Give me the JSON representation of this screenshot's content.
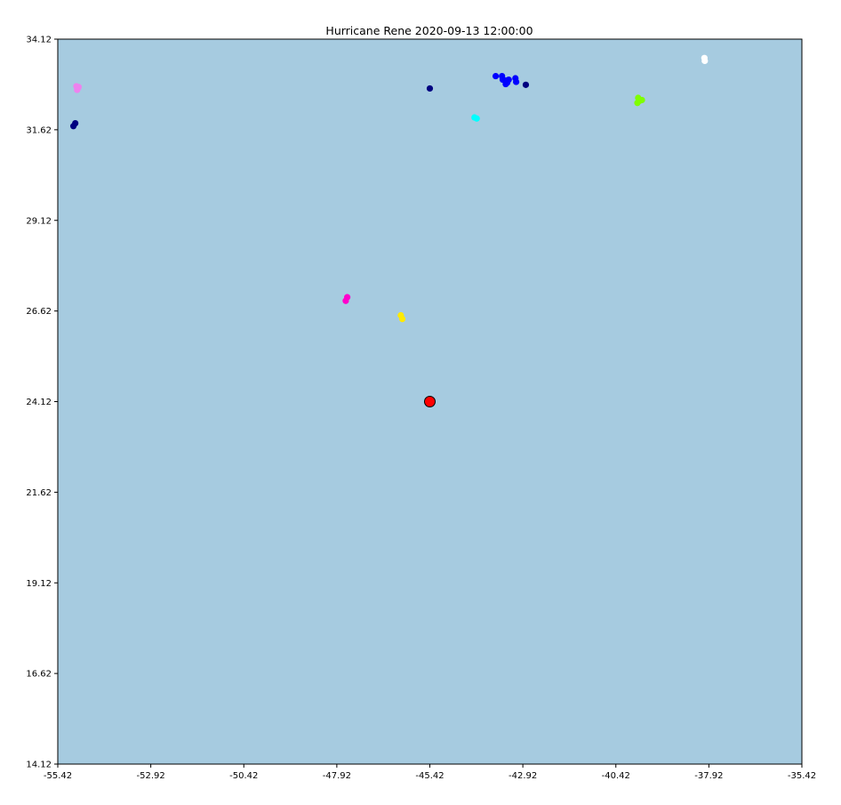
{
  "chart_data": {
    "type": "scatter",
    "title": "Hurricane Rene 2020-09-13 12:00:00",
    "xlabel": "",
    "ylabel": "",
    "xlim": [
      -55.42,
      -35.42
    ],
    "ylim": [
      14.12,
      34.12
    ],
    "x_ticks": [
      "-55.42",
      "-52.92",
      "-50.42",
      "-47.92",
      "-45.42",
      "-42.92",
      "-40.42",
      "-37.92",
      "-35.42"
    ],
    "y_ticks": [
      "14.12",
      "16.62",
      "19.12",
      "21.62",
      "24.12",
      "26.62",
      "29.12",
      "31.62",
      "34.12"
    ],
    "background_color": "#a6cbe0",
    "grid": false,
    "legend": "none",
    "series": [
      {
        "color": "#ee82ee",
        "points": [
          [
            -54.92,
            32.82
          ],
          [
            -54.88,
            32.76
          ],
          [
            -54.9,
            32.72
          ],
          [
            -54.86,
            32.8
          ]
        ]
      },
      {
        "color": "#000080",
        "points": [
          [
            -55.0,
            31.72
          ],
          [
            -54.95,
            31.8
          ],
          [
            -45.42,
            32.76
          ],
          [
            -42.84,
            32.86
          ]
        ]
      },
      {
        "color": "#00ffff",
        "points": [
          [
            -44.22,
            31.96
          ],
          [
            -44.16,
            31.93
          ]
        ]
      },
      {
        "color": "#0000ff",
        "points": [
          [
            -43.65,
            33.1
          ],
          [
            -43.48,
            33.1
          ],
          [
            -43.46,
            33.0
          ],
          [
            -43.38,
            32.98
          ],
          [
            -43.34,
            32.92
          ],
          [
            -43.38,
            32.88
          ],
          [
            -43.12,
            33.04
          ],
          [
            -43.1,
            32.94
          ],
          [
            -43.3,
            33.0
          ]
        ]
      },
      {
        "color": "#7fff00",
        "points": [
          [
            -39.82,
            32.5
          ],
          [
            -39.72,
            32.44
          ],
          [
            -39.84,
            32.36
          ],
          [
            -39.78,
            32.42
          ]
        ]
      },
      {
        "color": "#ffffff",
        "points": [
          [
            -38.04,
            33.6
          ],
          [
            -38.03,
            33.52
          ]
        ]
      },
      {
        "color": "#ff00cc",
        "points": [
          [
            -47.64,
            27.0
          ],
          [
            -47.68,
            26.9
          ]
        ]
      },
      {
        "color": "#ffea00",
        "points": [
          [
            -46.2,
            26.5
          ],
          [
            -46.16,
            26.4
          ]
        ]
      }
    ],
    "current_position": {
      "x": -45.42,
      "y": 24.12,
      "color": "#ff0000"
    }
  }
}
